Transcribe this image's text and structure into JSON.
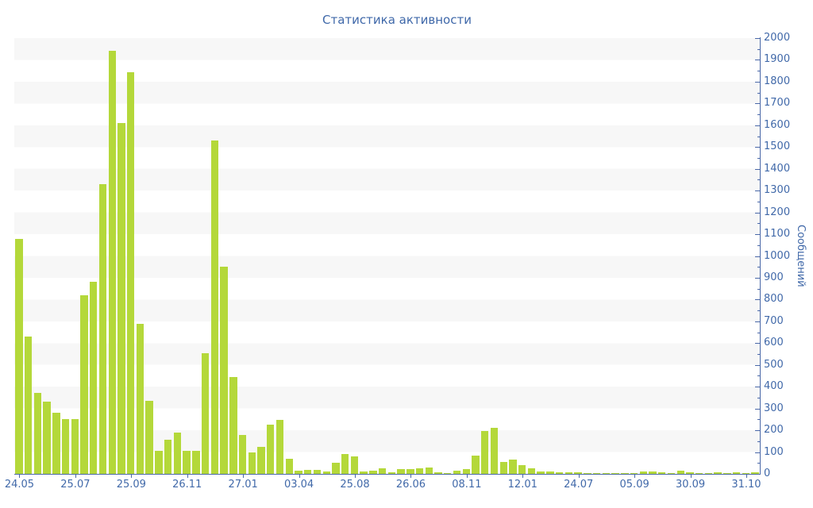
{
  "title": "Статистика активности",
  "chart_data": {
    "type": "bar",
    "title": "Статистика активности",
    "xlabel": "",
    "ylabel": "Сообщений",
    "ylim": [
      0,
      2000
    ],
    "y_tick_step": 100,
    "y_minor_tick_step": 50,
    "grid": "horizontal striped bands, 100 units per band",
    "legend": "none",
    "bar_color": "#b4d83a",
    "text_color": "#4169a9",
    "axis_color": "#4a68a8",
    "stripe_color": "#f7f7f7",
    "x_tick_every": 6,
    "x_tick_labels": [
      "24.05",
      "25.07",
      "25.09",
      "26.11",
      "27.01",
      "03.04",
      "25.08",
      "26.06",
      "08.11",
      "12.01",
      "24.07",
      "05.09",
      "30.09",
      "31.10"
    ],
    "values": [
      1080,
      630,
      370,
      330,
      280,
      250,
      250,
      820,
      880,
      1330,
      1940,
      1610,
      1845,
      690,
      335,
      105,
      155,
      190,
      105,
      105,
      553,
      1530,
      950,
      443,
      178,
      98,
      125,
      227,
      249,
      69,
      13,
      17,
      18,
      11,
      50,
      91,
      81,
      11,
      13,
      24,
      9,
      21,
      21,
      24,
      30,
      9,
      5,
      16,
      21,
      85,
      197,
      211,
      56,
      64,
      40,
      26,
      11,
      12,
      9,
      7,
      7,
      5,
      5,
      4,
      5,
      4,
      5,
      10,
      12,
      9,
      5,
      13,
      6,
      4,
      4,
      6,
      5,
      6,
      5,
      6
    ]
  }
}
